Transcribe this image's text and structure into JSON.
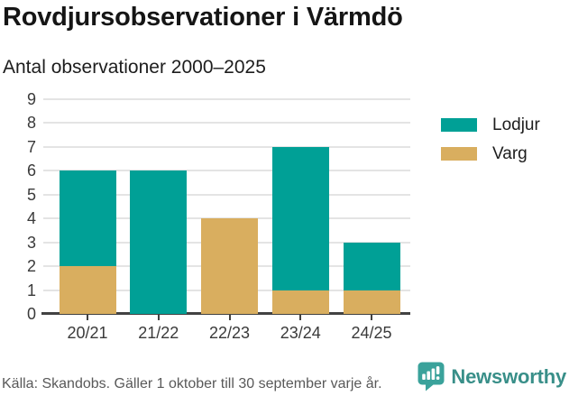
{
  "chart_data": {
    "type": "bar",
    "stacked": true,
    "title": "Rovdjursobservationer i Värmdö",
    "subtitle": "Antal observationer 2000–2025",
    "categories": [
      "20/21",
      "21/22",
      "22/23",
      "23/24",
      "24/25"
    ],
    "series": [
      {
        "name": "Lodjur",
        "color": "#00A096",
        "values": [
          4,
          6,
          0,
          6,
          2
        ]
      },
      {
        "name": "Varg",
        "color": "#D9AE5F",
        "values": [
          2,
          0,
          4,
          1,
          1
        ]
      }
    ],
    "stack_bottom_to_top": [
      "Varg",
      "Lodjur"
    ],
    "stack_totals": [
      6,
      6,
      4,
      7,
      3
    ],
    "xlabel": "",
    "ylabel": "",
    "ylim": [
      0,
      9
    ],
    "yticks": [
      0,
      1,
      2,
      3,
      4,
      5,
      6,
      7,
      8,
      9
    ],
    "grid": true,
    "legend_position": "right"
  },
  "footer": {
    "source": "Källa: Skandobs. Gäller 1 oktober till 30 september varje år.",
    "brand": "Newsworthy"
  },
  "colors": {
    "lodjur": "#00A096",
    "varg": "#D9AE5F",
    "gridline": "#e4e4e4",
    "axis": "#424242",
    "brand_teal": "#3AA29B",
    "brand_text_teal": "#398F89",
    "source_gray": "#595959"
  }
}
